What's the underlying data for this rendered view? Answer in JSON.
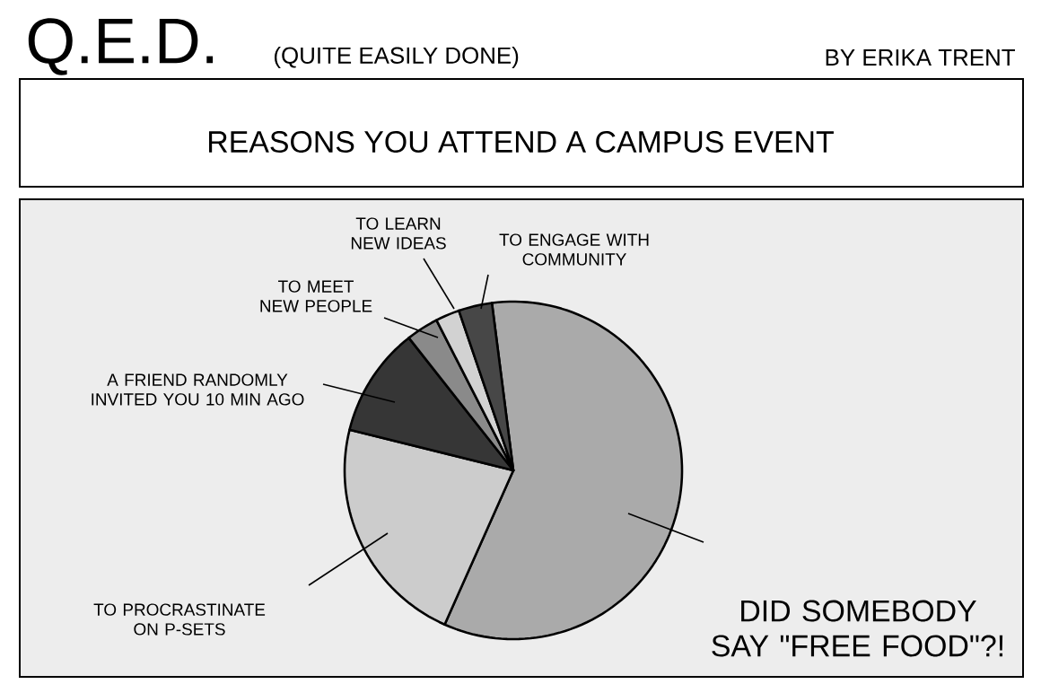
{
  "chart_data": {
    "type": "pie",
    "title": "REASONS YOU ATTEND A CAMPUS EVENT",
    "categories": [
      "DID SOMEBODY SAY \"FREE FOOD\"?!",
      "TO PROCRASTINATE ON P-SETS",
      "A FRIEND RANDOMLY INVITED YOU 10 MIN AGO",
      "TO MEET NEW PEOPLE",
      "TO LEARN NEW IDEAS",
      "TO ENGAGE WITH COMMUNITY"
    ],
    "values": [
      58.7,
      22.2,
      10.5,
      3.1,
      2.3,
      3.2
    ],
    "colors": [
      "#aaaaaa",
      "#cccccc",
      "#363636",
      "#8a8a8a",
      "#d2d2d2",
      "#474747"
    ],
    "annotations": [
      "Q.E.D.",
      "(QUITE EASILY DONE)",
      "BY ERIKA TRENT"
    ]
  }
}
